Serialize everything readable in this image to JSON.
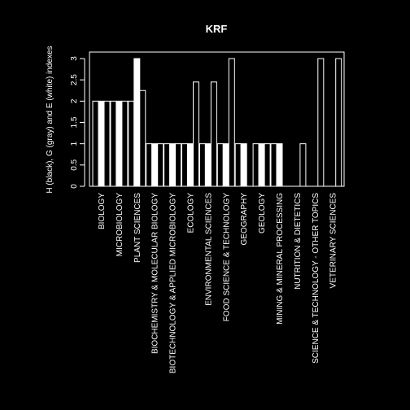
{
  "chart_data": {
    "type": "bar",
    "title": "KRF",
    "xlabel": "",
    "ylabel": "H (black), G (gray) and E (white) indexes",
    "ylim": [
      0,
      3
    ],
    "yticks": [
      0,
      0.5,
      1,
      1.5,
      2,
      2.5,
      3
    ],
    "ytick_labels": [
      "0",
      "0.5",
      "1",
      "1.5",
      "2",
      "2.5",
      "3"
    ],
    "categories": [
      "BIOLOGY",
      "MICROBIOLOGY",
      "PLANT SCIENCES",
      "BIOCHEMISTRY & MOLECULAR BIOLOGY",
      "BIOTECHNOLOGY & APPLIED MICROBIOLOGY",
      "ECOLOGY",
      "ENVIRONMENTAL SCIENCES",
      "FOOD SCIENCE & TECHNOLOGY",
      "GEOGRAPHY",
      "GEOLOGY",
      "MINING & MINERAL PROCESSING",
      "NUTRITION & DIETETICS",
      "SCIENCE & TECHNOLOGY - OTHER TOPICS",
      "VETERINARY SCIENCES"
    ],
    "series": [
      {
        "values": [
          2,
          2,
          2,
          1,
          1,
          1,
          1,
          1,
          1,
          1,
          1,
          0,
          0,
          0
        ],
        "fill": "#000000"
      },
      {
        "values": [
          2,
          2,
          3,
          1,
          1,
          1,
          1,
          1,
          1,
          1,
          1,
          0,
          0,
          0
        ],
        "fill": "#ffffff"
      },
      {
        "values": [
          2,
          2,
          2.25,
          1,
          1,
          2.45,
          2.45,
          3,
          0,
          1,
          0,
          1,
          3,
          3
        ],
        "fill": "#000000"
      }
    ],
    "background": "#000000",
    "foreground": "#ffffff",
    "grid": false,
    "legend": "none"
  }
}
